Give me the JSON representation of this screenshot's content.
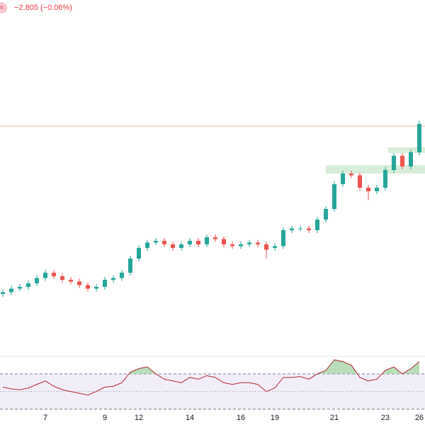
{
  "header": {
    "badge": "≈",
    "change": "−2.805 (−0.06%)"
  },
  "chart_data": {
    "type": "candlestick",
    "categories": [
      null,
      null,
      null,
      null,
      null,
      "7",
      null,
      null,
      null,
      null,
      null,
      null,
      "9",
      null,
      null,
      null,
      "12",
      null,
      null,
      null,
      null,
      null,
      "14",
      null,
      null,
      null,
      null,
      null,
      "16",
      null,
      null,
      null,
      "19",
      null,
      null,
      null,
      null,
      null,
      null,
      "21",
      null,
      null,
      null,
      null,
      null,
      "23",
      null,
      null,
      null,
      "26"
    ],
    "open": [
      17,
      17.5,
      18.5,
      19,
      20,
      21.5,
      23,
      22,
      21,
      20.5,
      19.5,
      18.5,
      19,
      21,
      21.5,
      23,
      27,
      30,
      31.5,
      32,
      31,
      30,
      31,
      32,
      31,
      33,
      32.5,
      31,
      30.5,
      31,
      31.5,
      31,
      30,
      30.5,
      35,
      35.5,
      35.5,
      35,
      38,
      41,
      48,
      51,
      50.5,
      47,
      46,
      47,
      52,
      56,
      53,
      57
    ],
    "high": [
      18.3,
      19.3,
      19.8,
      20.8,
      22.3,
      23.8,
      23.8,
      22.8,
      21.8,
      21.3,
      20.3,
      19.8,
      21.8,
      22.3,
      23.8,
      27.8,
      30.8,
      32.3,
      32.8,
      32.8,
      31.8,
      31.8,
      32.8,
      32.8,
      33.8,
      33.8,
      33.3,
      31.8,
      31.8,
      32.3,
      32.3,
      31.8,
      31.3,
      35.8,
      36.3,
      36.3,
      36.3,
      38.8,
      41.8,
      48.8,
      51.8,
      51.8,
      51.3,
      47.8,
      47.8,
      52.8,
      56.8,
      56.8,
      57.8,
      66
    ],
    "low": [
      16.2,
      16.7,
      17.7,
      18.2,
      19.2,
      20.7,
      21.2,
      20.2,
      19.7,
      18.7,
      17.7,
      17.7,
      18.2,
      20.2,
      20.7,
      22.2,
      26.2,
      29.2,
      30.7,
      30.2,
      29.2,
      29.2,
      30.2,
      30.2,
      30.2,
      31.7,
      30.2,
      29.7,
      29.7,
      30.2,
      30.2,
      27,
      29.2,
      29.7,
      34.2,
      34.7,
      34.2,
      34.2,
      37.2,
      40.2,
      47.2,
      49.7,
      46.2,
      43.5,
      45.2,
      46.2,
      51.2,
      52.2,
      52.2,
      56.2
    ],
    "close": [
      17.5,
      18.5,
      19,
      20,
      21.5,
      23,
      22,
      21,
      20.5,
      19.5,
      18.5,
      19,
      21,
      21.5,
      23,
      27,
      30,
      31.5,
      32,
      31,
      30,
      31,
      32,
      31,
      33,
      32.5,
      31,
      30.5,
      31,
      31.5,
      31,
      29.5,
      30.5,
      35,
      35.5,
      35.5,
      35,
      38,
      41,
      48,
      51,
      50.5,
      47,
      46,
      47,
      52,
      56,
      53,
      57,
      65
    ],
    "ylim": [
      0,
      100
    ],
    "up_color": "#26a69a",
    "down_color": "#ef5350",
    "price_line": 64.4,
    "zones": [
      {
        "low": 51,
        "high": 53.4
      },
      {
        "low": 56.8,
        "high": 58.4
      }
    ],
    "rsi": {
      "values": [
        55,
        53,
        52,
        54,
        58,
        62,
        56,
        52,
        50,
        48,
        46,
        50,
        55,
        56,
        60,
        72,
        76,
        78,
        70,
        64,
        62,
        60,
        66,
        64,
        68,
        66,
        60,
        58,
        60,
        60,
        58,
        50,
        54,
        66,
        66,
        67,
        64,
        70,
        74,
        86,
        84,
        80,
        66,
        62,
        64,
        74,
        78,
        70,
        76,
        84
      ],
      "ylim": [
        20,
        90
      ],
      "levels": [
        70,
        50,
        30
      ],
      "color": "#b22833"
    }
  }
}
